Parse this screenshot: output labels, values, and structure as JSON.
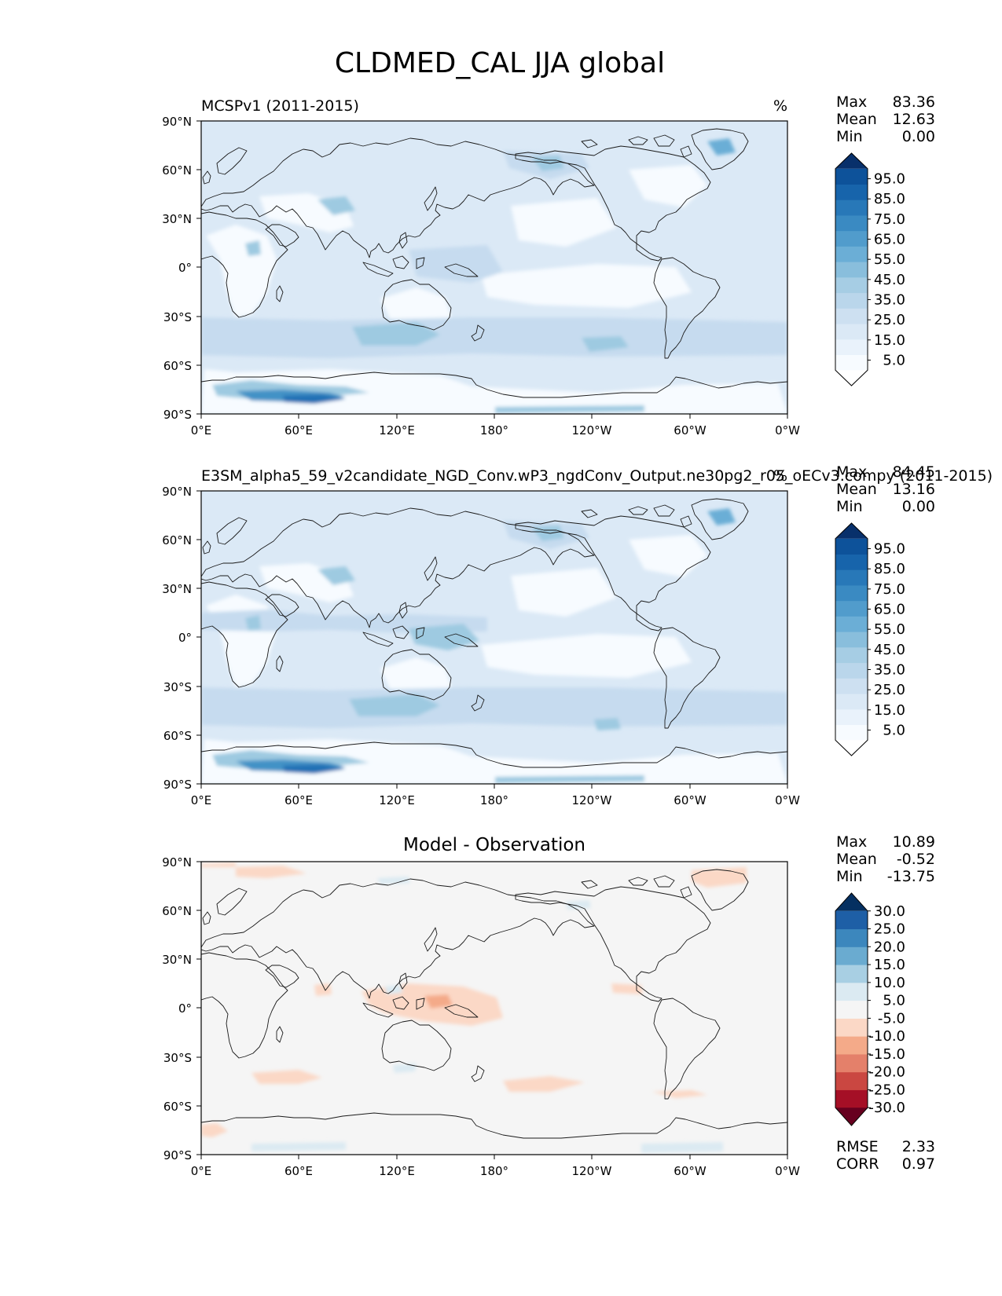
{
  "figure_title": "CLDMED_CAL JJA global",
  "chart_data": [
    {
      "type": "heatmap",
      "title": "MCSPv1 (2011-2015)",
      "units": "%",
      "stats": [
        {
          "label": "Max",
          "value": "83.36"
        },
        {
          "label": "Mean",
          "value": "12.63"
        },
        {
          "label": "Min",
          "value": "0.00"
        }
      ],
      "colorbar": {
        "levels": [
          0,
          5,
          10,
          15,
          20,
          25,
          30,
          35,
          40,
          45,
          50,
          55,
          60,
          65,
          70,
          75,
          80,
          85,
          90,
          95,
          100
        ],
        "labels": [
          "95.0",
          "85.0",
          "75.0",
          "65.0",
          "55.0",
          "45.0",
          "35.0",
          "25.0",
          "15.0",
          "5.0"
        ],
        "label_values": [
          95,
          85,
          75,
          65,
          55,
          45,
          35,
          25,
          15,
          5
        ],
        "extend": "both",
        "colors": [
          "#ffffff",
          "#f7fbff",
          "#e9f2fb",
          "#dbe9f6",
          "#cde0f1",
          "#bad6eb",
          "#a6cde4",
          "#89bedc",
          "#6baed6",
          "#519ccc",
          "#3a8ac2",
          "#2878b8",
          "#1764ab",
          "#0d529a",
          "#08306b"
        ]
      },
      "x_ticks": [
        "0°E",
        "60°E",
        "120°E",
        "180°",
        "120°W",
        "60°W",
        "0°W"
      ],
      "y_ticks": [
        "90°N",
        "60°N",
        "30°N",
        "0°",
        "30°S",
        "60°S",
        "90°S"
      ],
      "xlim": [
        0,
        360
      ],
      "ylim": [
        -90,
        90
      ]
    },
    {
      "type": "heatmap",
      "title": "E3SM_alpha5_59_v2candidate_NGD_Conv.wP3_ngdConv_Output.ne30pg2_r05_oECv3.compy (2011-2015)",
      "units": "%",
      "stats": [
        {
          "label": "Max",
          "value": "84.45"
        },
        {
          "label": "Mean",
          "value": "13.16"
        },
        {
          "label": "Min",
          "value": "0.00"
        }
      ],
      "colorbar": {
        "levels": [
          0,
          5,
          10,
          15,
          20,
          25,
          30,
          35,
          40,
          45,
          50,
          55,
          60,
          65,
          70,
          75,
          80,
          85,
          90,
          95,
          100
        ],
        "labels": [
          "95.0",
          "85.0",
          "75.0",
          "65.0",
          "55.0",
          "45.0",
          "35.0",
          "25.0",
          "15.0",
          "5.0"
        ],
        "label_values": [
          95,
          85,
          75,
          65,
          55,
          45,
          35,
          25,
          15,
          5
        ],
        "extend": "both",
        "colors": [
          "#ffffff",
          "#f7fbff",
          "#e9f2fb",
          "#dbe9f6",
          "#cde0f1",
          "#bad6eb",
          "#a6cde4",
          "#89bedc",
          "#6baed6",
          "#519ccc",
          "#3a8ac2",
          "#2878b8",
          "#1764ab",
          "#0d529a",
          "#08306b"
        ]
      },
      "x_ticks": [
        "0°E",
        "60°E",
        "120°E",
        "180°",
        "120°W",
        "60°W",
        "0°W"
      ],
      "y_ticks": [
        "90°N",
        "60°N",
        "30°N",
        "0°",
        "30°S",
        "60°S",
        "90°S"
      ],
      "xlim": [
        0,
        360
      ],
      "ylim": [
        -90,
        90
      ]
    },
    {
      "type": "heatmap",
      "title": "Model - Observation",
      "units": "%",
      "stats": [
        {
          "label": "Max",
          "value": "10.89"
        },
        {
          "label": "Mean",
          "value": "-0.52"
        },
        {
          "label": "Min",
          "value": "-13.75"
        }
      ],
      "metrics": [
        {
          "label": "RMSE",
          "value": "2.33"
        },
        {
          "label": "CORR",
          "value": "0.97"
        }
      ],
      "colorbar": {
        "levels": [
          -30,
          -25,
          -20,
          -15,
          -10,
          -5,
          5,
          10,
          15,
          20,
          25,
          30
        ],
        "labels": [
          "30.0",
          "25.0",
          "20.0",
          "15.0",
          "10.0",
          "5.0",
          "-5.0",
          "-10.0",
          "-15.0",
          "-20.0",
          "-25.0",
          "-30.0"
        ],
        "label_values": [
          30,
          25,
          20,
          15,
          10,
          5,
          -5,
          -10,
          -15,
          -20,
          -25,
          -30
        ],
        "extend": "both",
        "colors": [
          "#67001f",
          "#a50f26",
          "#ca4741",
          "#e4806a",
          "#f4aa89",
          "#fbd8c6",
          "#f5f5f5",
          "#dbeaf2",
          "#a8cfe3",
          "#6aabd0",
          "#3c87bd",
          "#1e5fa6",
          "#053061"
        ]
      },
      "x_ticks": [
        "0°E",
        "60°E",
        "120°E",
        "180°",
        "120°W",
        "60°W",
        "0°W"
      ],
      "y_ticks": [
        "90°N",
        "60°N",
        "30°N",
        "0°",
        "30°S",
        "60°S",
        "90°S"
      ],
      "xlim": [
        0,
        360
      ],
      "ylim": [
        -90,
        90
      ]
    }
  ]
}
